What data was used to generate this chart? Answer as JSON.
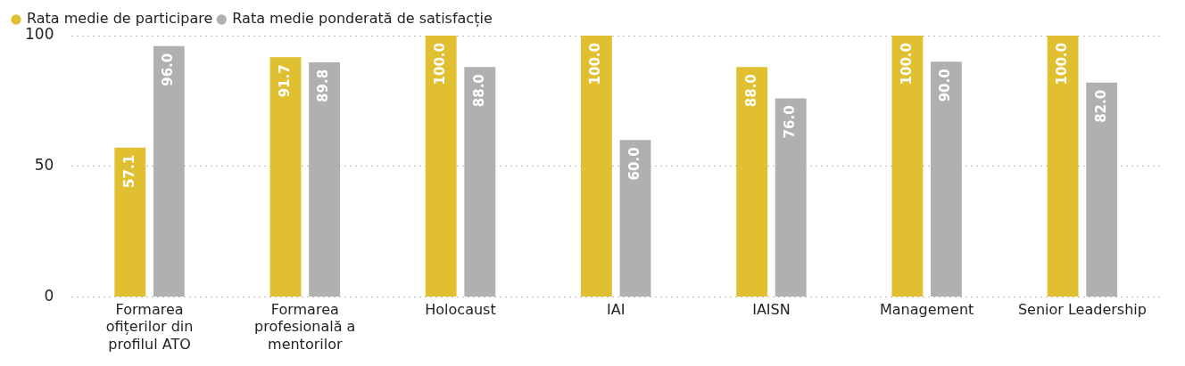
{
  "chart_data": {
    "type": "bar",
    "categories": [
      "Formarea ofițerilor din profilul ATO",
      "Formarea profesională a mentorilor",
      "Holocaust",
      "IAI",
      "IAISN",
      "Management",
      "Senior Leadership"
    ],
    "series": [
      {
        "name": "Rata medie de participare",
        "color": "#e0bf30",
        "values": [
          57.1,
          91.7,
          100,
          100,
          88,
          100,
          100
        ],
        "value_labels": [
          "57.1",
          "91.7",
          "100.0",
          "100.0",
          "88.0",
          "100.0",
          "100.0"
        ]
      },
      {
        "name": "Rata medie ponderată de satisfacție",
        "color": "#b0b0b0",
        "values": [
          96,
          89.8,
          88,
          60,
          76,
          90,
          82
        ],
        "value_labels": [
          "96.0",
          "89.8",
          "88.0",
          "60.0",
          "76.0",
          "90.0",
          "82.0"
        ]
      }
    ],
    "ylim": [
      0,
      100
    ],
    "yticks": [
      0,
      50,
      100
    ],
    "grid": "y",
    "legend": "top left"
  }
}
